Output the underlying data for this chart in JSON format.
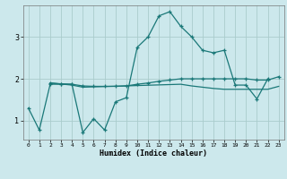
{
  "xlabel": "Humidex (Indice chaleur)",
  "bg_color": "#cce8ec",
  "grid_color": "#aacccc",
  "line_color": "#1a7878",
  "xlim": [
    -0.5,
    23.5
  ],
  "ylim": [
    0.55,
    3.75
  ],
  "yticks": [
    1,
    2,
    3
  ],
  "xticks": [
    0,
    1,
    2,
    3,
    4,
    5,
    6,
    7,
    8,
    9,
    10,
    11,
    12,
    13,
    14,
    15,
    16,
    17,
    18,
    19,
    20,
    21,
    22,
    23
  ],
  "series1_x": [
    0,
    1,
    2,
    3,
    4,
    5,
    6,
    7,
    8,
    9,
    10,
    11,
    12,
    13,
    14,
    15,
    16,
    17,
    18,
    19,
    20,
    21,
    22
  ],
  "series1_y": [
    1.3,
    0.78,
    1.87,
    1.87,
    1.87,
    0.72,
    1.05,
    0.78,
    1.45,
    1.55,
    2.75,
    3.0,
    3.5,
    3.6,
    3.25,
    3.0,
    2.68,
    2.62,
    2.68,
    1.85,
    1.85,
    1.52,
    2.0
  ],
  "series2_x": [
    2,
    3,
    4,
    5,
    6,
    7,
    8,
    9,
    10,
    11,
    12,
    13,
    14,
    15,
    16,
    17,
    18,
    19,
    20,
    21,
    22,
    23
  ],
  "series2_y": [
    1.9,
    1.88,
    1.87,
    1.83,
    1.82,
    1.82,
    1.82,
    1.83,
    1.87,
    1.9,
    1.94,
    1.97,
    2.0,
    2.0,
    2.0,
    2.0,
    2.0,
    2.0,
    2.0,
    1.97,
    1.97,
    2.05
  ],
  "series3_x": [
    2,
    4,
    5,
    14,
    15,
    16,
    17,
    18,
    19,
    20,
    21,
    22,
    23
  ],
  "series3_y": [
    1.9,
    1.85,
    1.8,
    1.87,
    1.83,
    1.8,
    1.77,
    1.75,
    1.75,
    1.75,
    1.75,
    1.75,
    1.82
  ]
}
